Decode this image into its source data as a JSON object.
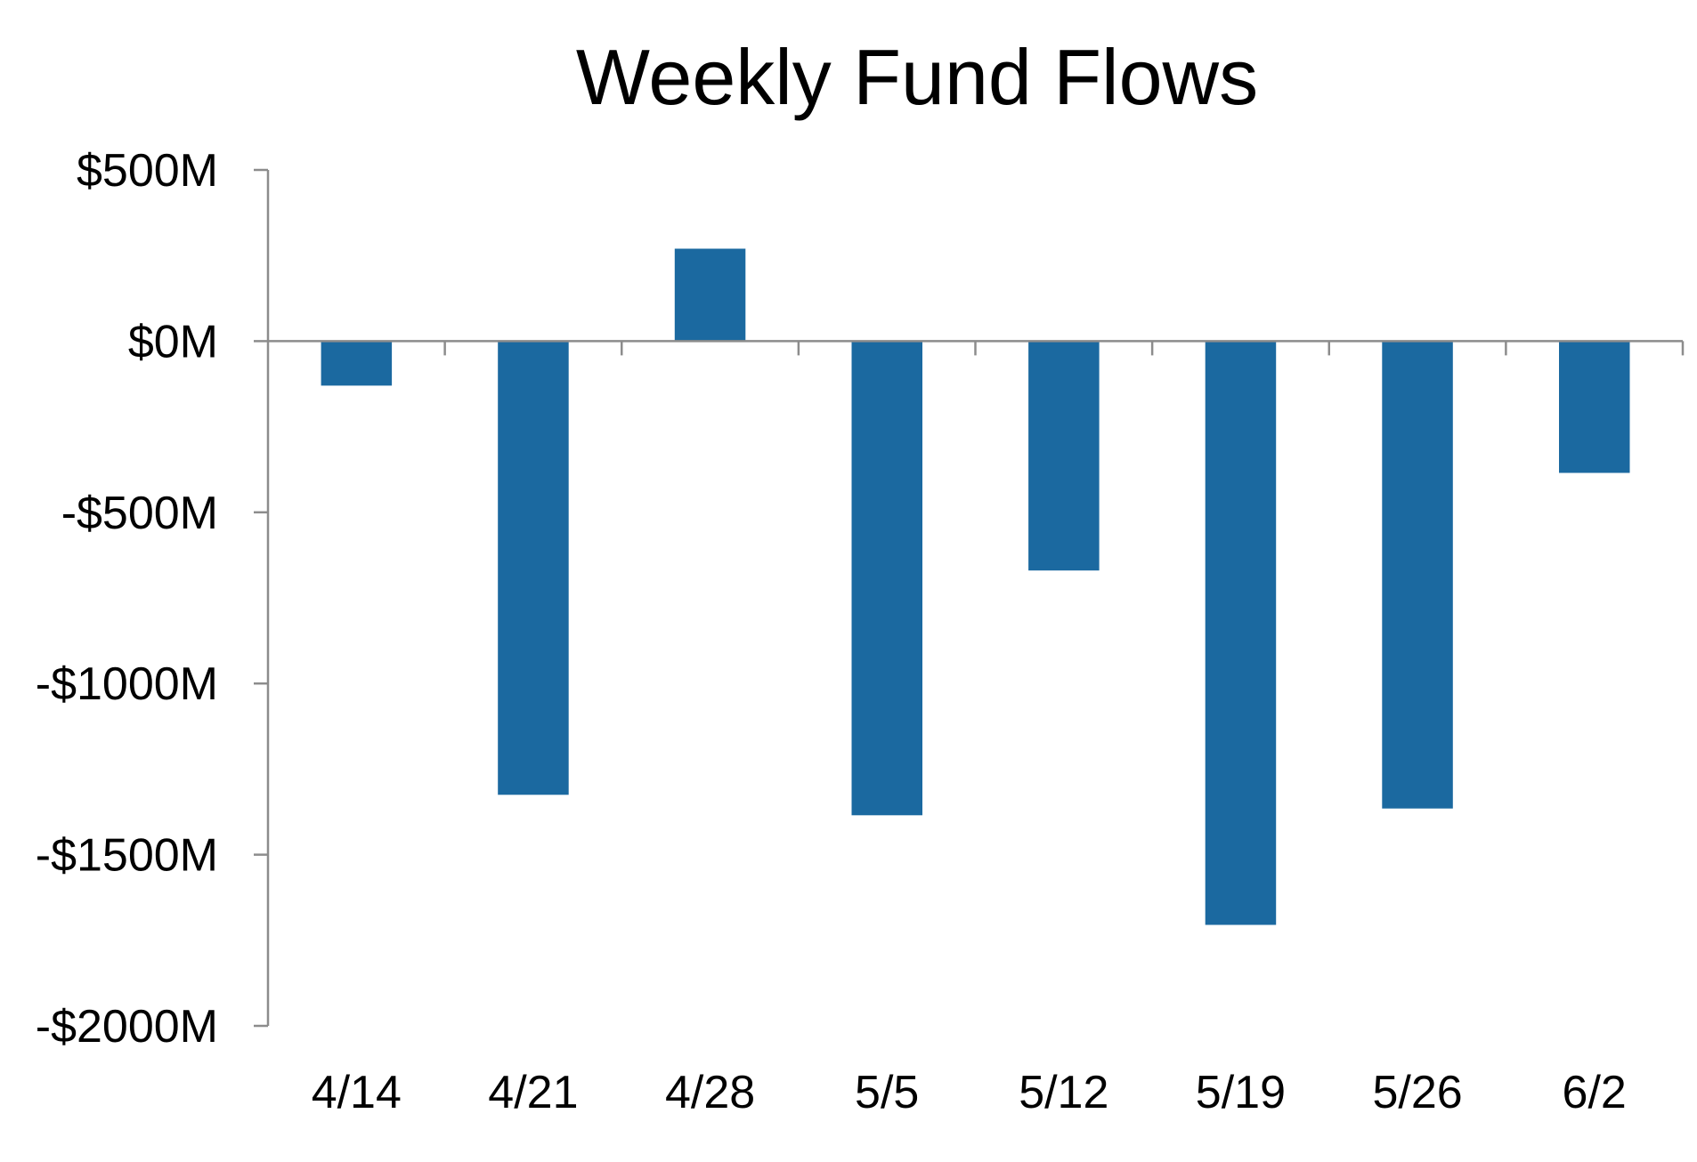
{
  "chart_data": {
    "type": "bar",
    "title": "Weekly Fund Flows",
    "xlabel": "",
    "ylabel": "",
    "categories": [
      "4/14",
      "4/21",
      "4/28",
      "5/5",
      "5/12",
      "5/19",
      "5/26",
      "6/2"
    ],
    "series": [
      {
        "values": [
          -130,
          -1325,
          270,
          -1385,
          -670,
          -1705,
          -1365,
          -385
        ]
      }
    ],
    "ylim": [
      -2000,
      500
    ],
    "yticks": [
      500,
      0,
      -500,
      -1000,
      -1500,
      -2000
    ],
    "ytick_labels": [
      "$500M",
      "$0M",
      "-$500M",
      "-$1000M",
      "-$1500M",
      "-$2000M"
    ],
    "grid": false,
    "legend": "none",
    "colors": {
      "bar": "#1b69a0",
      "axis": "#8c8c8c",
      "text": "#000000"
    }
  }
}
